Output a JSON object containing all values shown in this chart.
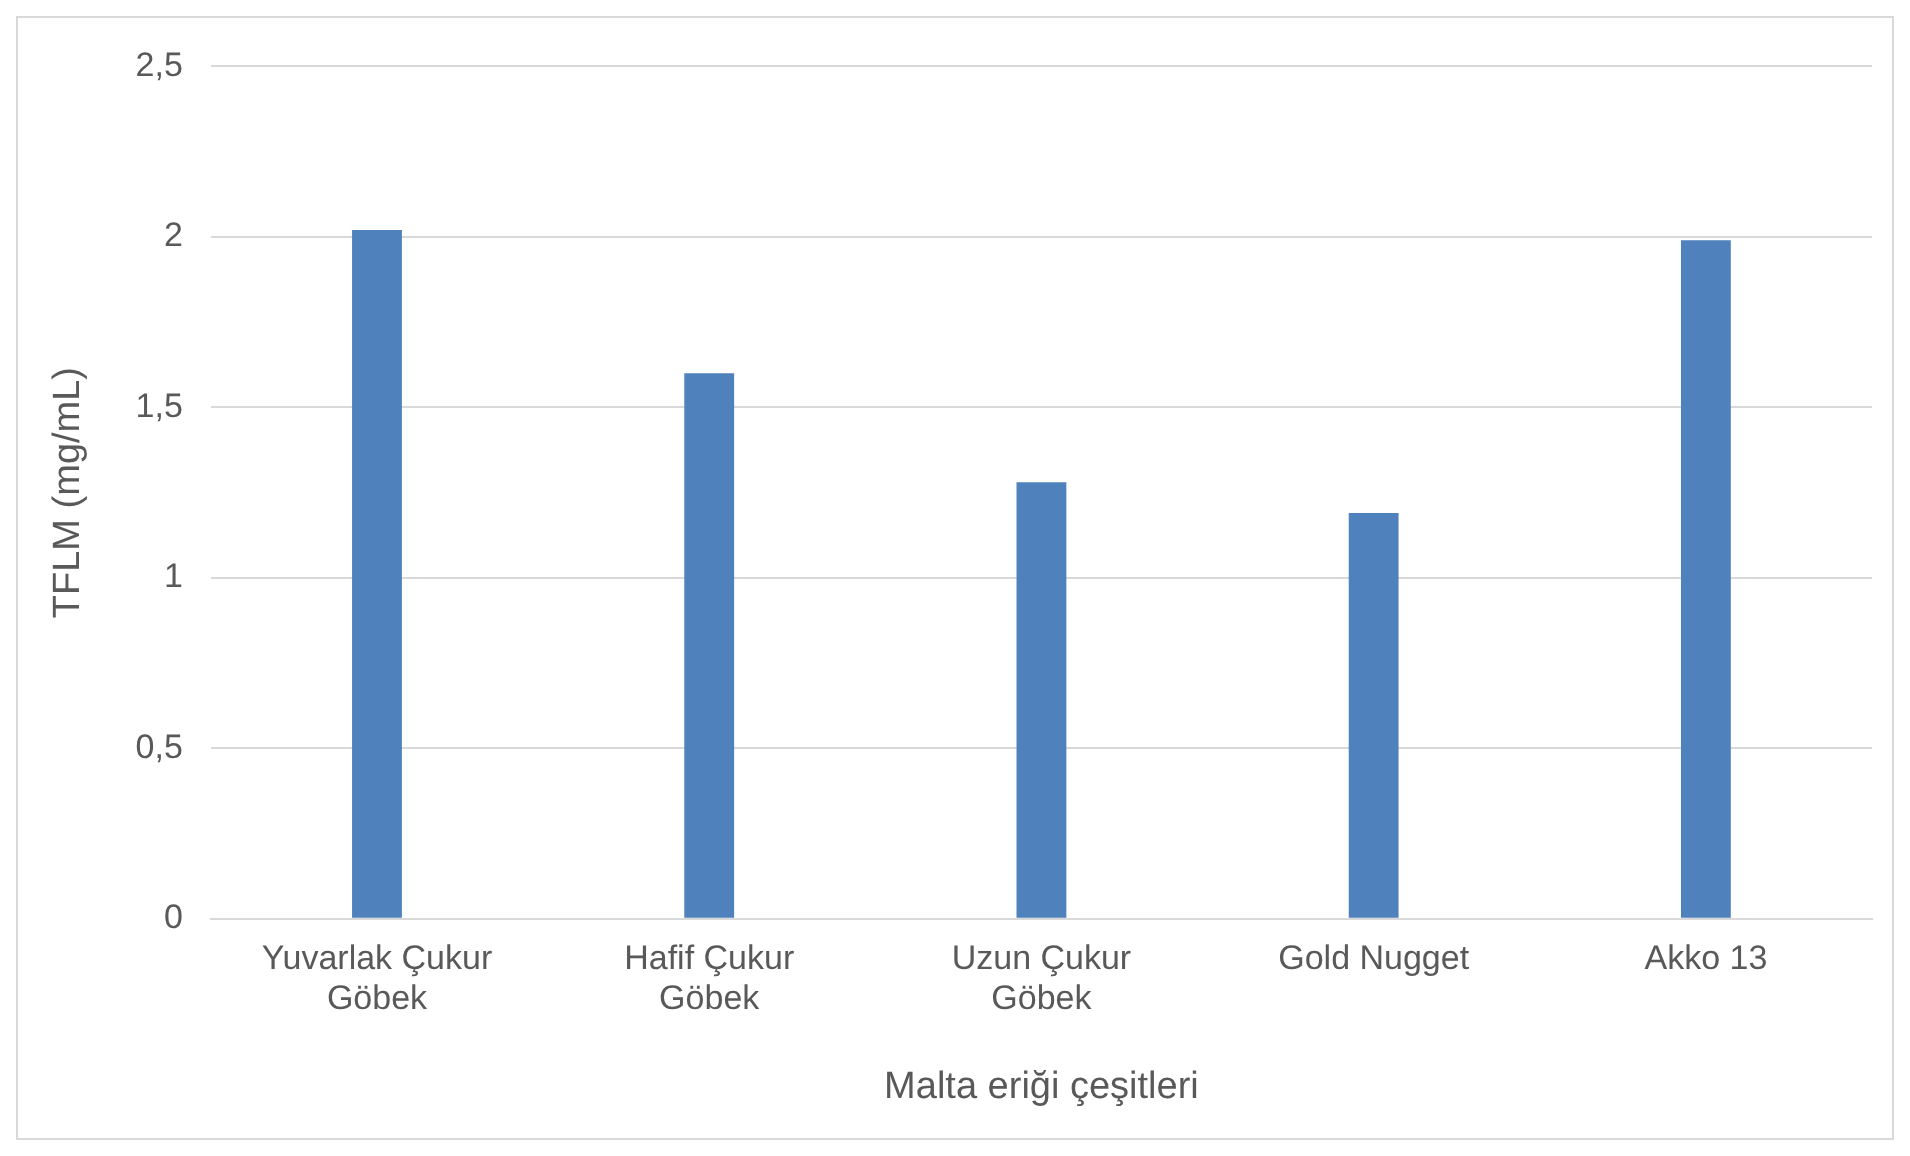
{
  "chart_data": {
    "type": "bar",
    "xlabel": "Malta eriği çeşitleri",
    "ylabel": "TFLM (mg/mL)",
    "categories": [
      "Yuvarlak Çukur Göbek",
      "Hafif Çukur Göbek",
      "Uzun Çukur Göbek",
      "Gold Nugget",
      "Akko 13"
    ],
    "values": [
      2.02,
      1.6,
      1.28,
      1.19,
      1.99
    ],
    "color": "#4f81bd",
    "ylim": [
      0,
      2.5
    ],
    "yticks": [
      {
        "value": 0,
        "label": "0"
      },
      {
        "value": 0.5,
        "label": "0,5"
      },
      {
        "value": 1,
        "label": "1"
      },
      {
        "value": 1.5,
        "label": "1,5"
      },
      {
        "value": 2,
        "label": "2"
      },
      {
        "value": 2.5,
        "label": "2,5"
      }
    ],
    "grid": "y",
    "legend": false
  }
}
